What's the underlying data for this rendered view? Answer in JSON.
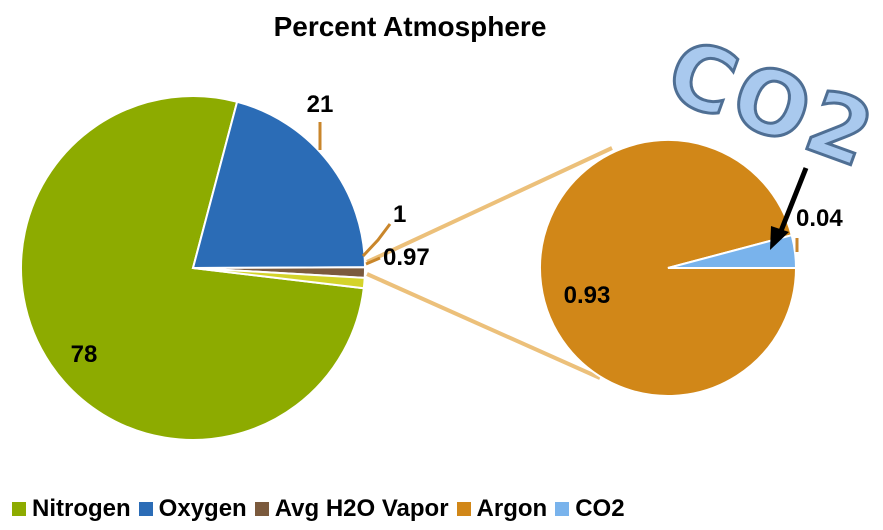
{
  "chart_data": {
    "type": "pie-of-pie",
    "title": "Percent Atmosphere",
    "main_pie": {
      "slices": [
        {
          "name": "Nitrogen",
          "value": 78,
          "label": "78",
          "color": "#8dab00"
        },
        {
          "name": "Oxygen",
          "value": 21,
          "label": "21",
          "color": "#2b6cb6"
        },
        {
          "name": "Avg H2O Vapor",
          "value": 1,
          "label": "1",
          "color": "#7b5a3d"
        },
        {
          "name": "Argon + CO2",
          "value": 0.97,
          "label": "0.97",
          "color": "#d4d32a"
        }
      ]
    },
    "secondary_pie": {
      "slices": [
        {
          "name": "Argon",
          "value": 0.93,
          "label": "0.93",
          "color": "#d18718"
        },
        {
          "name": "CO2",
          "value": 0.04,
          "label": "0.04",
          "color": "#79b3ec"
        }
      ]
    },
    "legend": {
      "placement": "bottom",
      "entries": [
        {
          "name": "Nitrogen",
          "color": "#8dab00"
        },
        {
          "name": "Oxygen",
          "color": "#2b6cb6"
        },
        {
          "name": "Avg H2O Vapor",
          "color": "#7b5a3d"
        },
        {
          "name": "Argon",
          "color": "#d18718"
        },
        {
          "name": "CO2",
          "color": "#79b3ec"
        }
      ]
    },
    "connector_color": "#ecc07a",
    "leader_line_color": "#c9862b"
  },
  "annotation": {
    "text": "CO2"
  }
}
